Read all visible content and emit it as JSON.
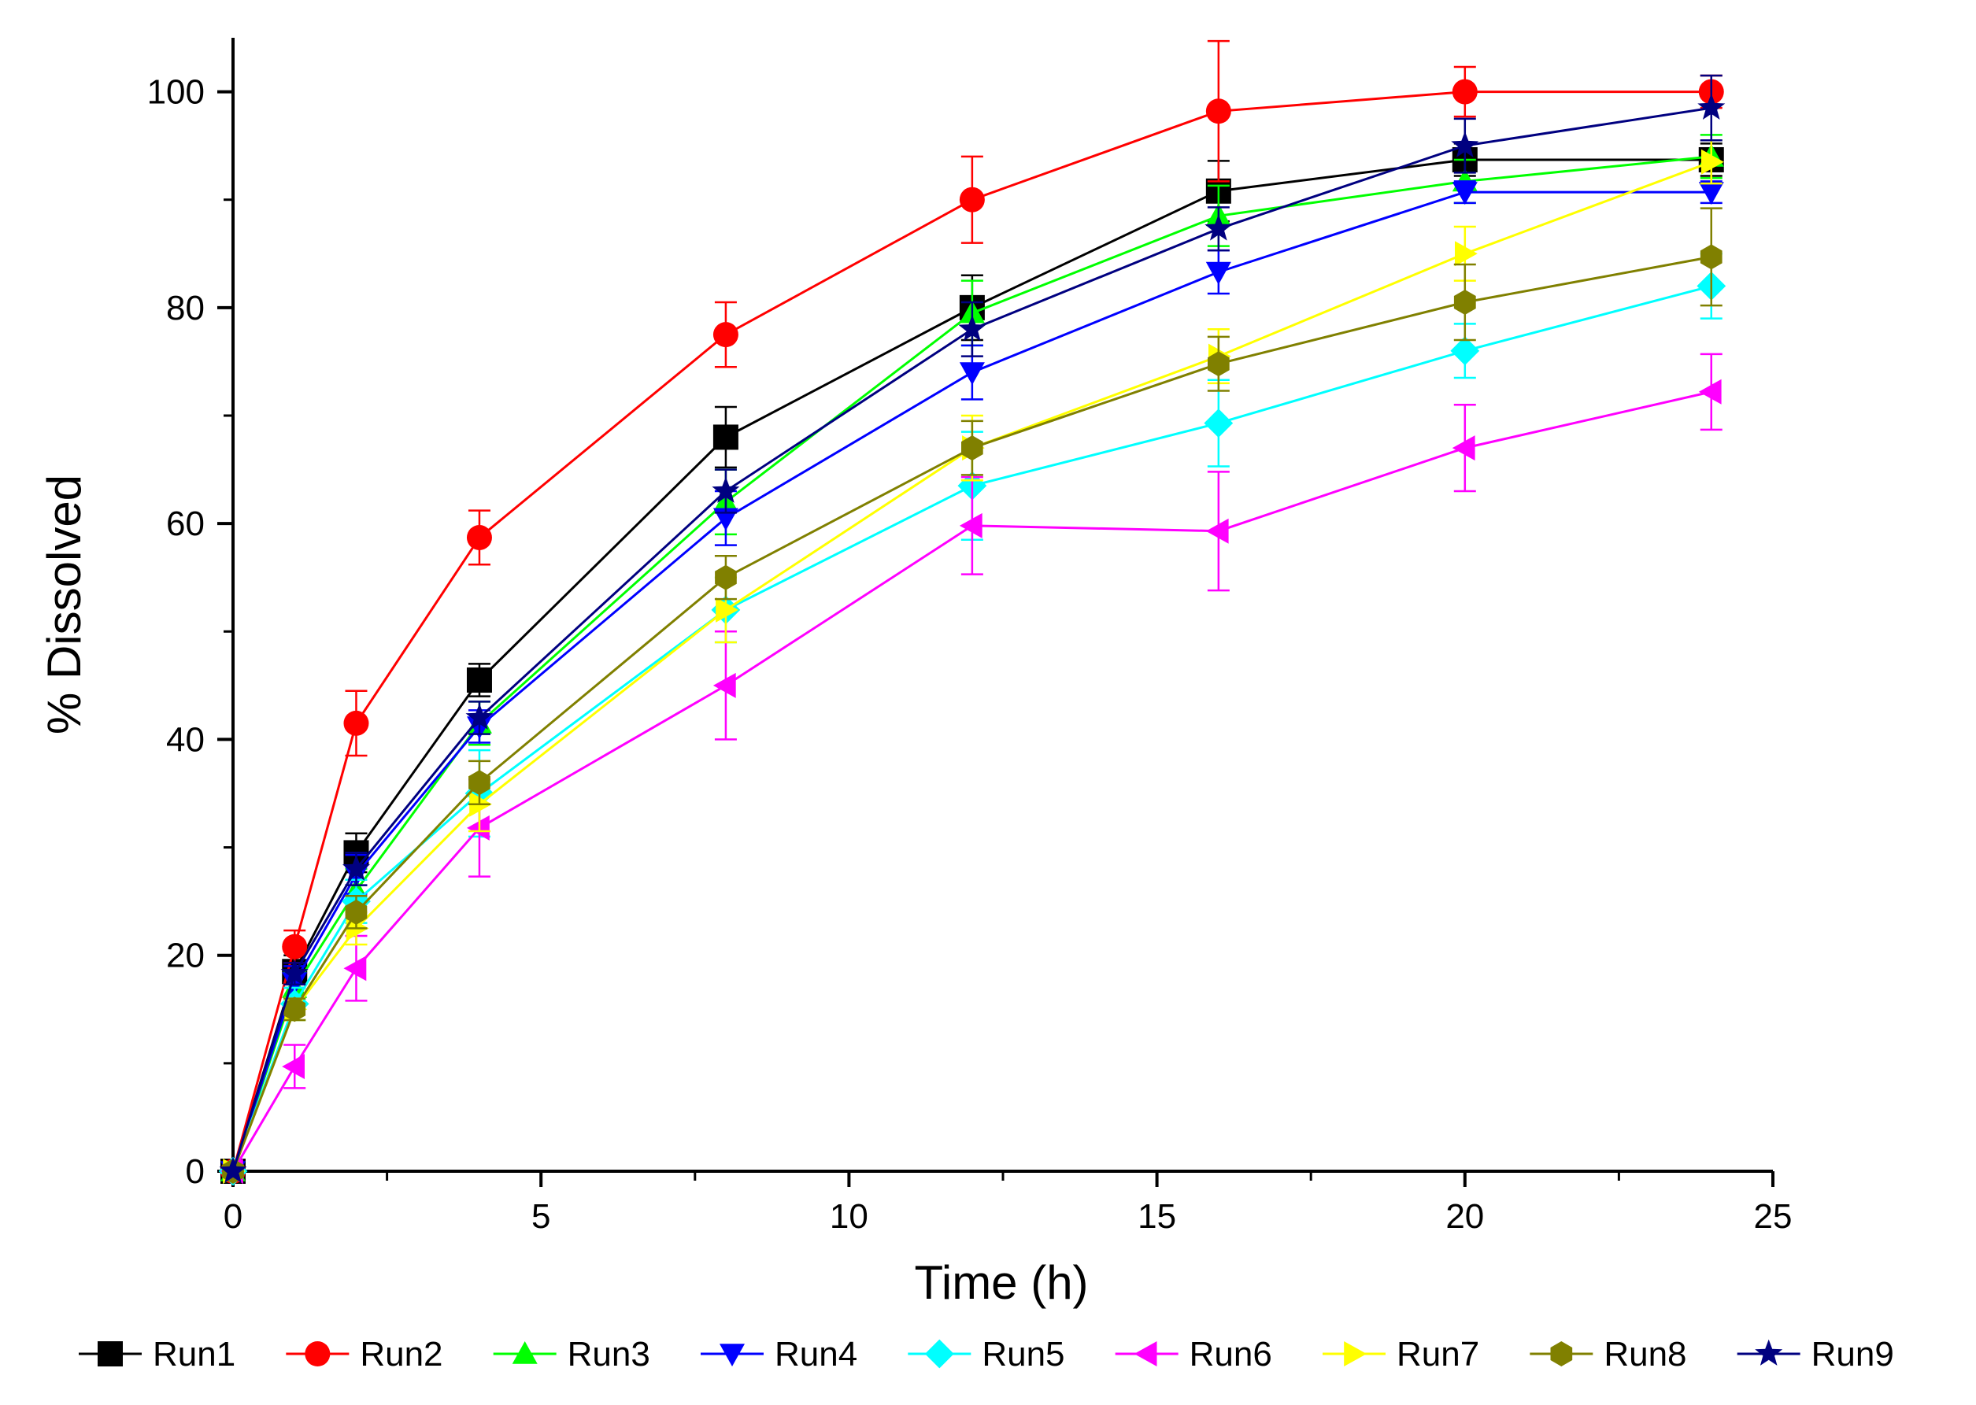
{
  "chart_data": {
    "type": "line",
    "title": "",
    "xlabel": "Time (h)",
    "ylabel": "% Dissolved",
    "xlim": [
      0,
      25
    ],
    "ylim": [
      0,
      105
    ],
    "x_ticks": [
      0,
      5,
      10,
      15,
      20,
      25
    ],
    "x_tick_labels": [
      "0",
      "5",
      "10",
      "15",
      "20",
      "25"
    ],
    "y_ticks": [
      0,
      20,
      40,
      60,
      80,
      100
    ],
    "y_tick_labels": [
      "0",
      "20",
      "40",
      "60",
      "80",
      "100"
    ],
    "x": [
      0,
      1,
      2,
      4,
      8,
      12,
      16,
      20,
      24
    ],
    "grid": false,
    "legend_position": "bottom",
    "series": [
      {
        "name": "Run1",
        "color": "#000000",
        "marker": "square",
        "values": [
          0,
          18.5,
          29.5,
          45.5,
          68,
          80,
          90.8,
          93.7,
          93.7
        ],
        "errors": [
          0,
          1.5,
          1.8,
          1.5,
          2.8,
          3.0,
          2.8,
          1.5,
          1.5
        ]
      },
      {
        "name": "Run2",
        "color": "#ff0000",
        "marker": "circle",
        "values": [
          0,
          20.8,
          41.5,
          58.7,
          77.5,
          90,
          98.2,
          100,
          100
        ],
        "errors": [
          0,
          1.5,
          3.0,
          2.5,
          3.0,
          4.0,
          6.5,
          2.3,
          1.5
        ]
      },
      {
        "name": "Run3",
        "color": "#00ff00",
        "marker": "triangle-up",
        "values": [
          0,
          17,
          26,
          41.5,
          62,
          79.5,
          88.5,
          91.7,
          94
        ],
        "errors": [
          0,
          1.5,
          2.0,
          2.0,
          3.0,
          3.0,
          2.8,
          2.0,
          2.0
        ]
      },
      {
        "name": "Run4",
        "color": "#0000ff",
        "marker": "triangle-down",
        "values": [
          0,
          17.5,
          27.5,
          41.2,
          60.5,
          74,
          83.3,
          90.7,
          90.7
        ],
        "errors": [
          0,
          1.5,
          1.8,
          1.5,
          2.5,
          2.5,
          2.0,
          1.0,
          1.0
        ]
      },
      {
        "name": "Run5",
        "color": "#00ffff",
        "marker": "diamond",
        "values": [
          0,
          15.5,
          25,
          35,
          52,
          63.5,
          69.3,
          76,
          82
        ],
        "errors": [
          0,
          1.5,
          2.0,
          4.0,
          3.0,
          5.0,
          4.0,
          2.5,
          3.0
        ]
      },
      {
        "name": "Run6",
        "color": "#ff00ff",
        "marker": "triangle-left",
        "values": [
          0,
          9.7,
          18.8,
          31.8,
          45,
          59.8,
          59.3,
          67,
          72.2
        ],
        "errors": [
          0,
          2.0,
          3.0,
          4.5,
          5.0,
          4.5,
          5.5,
          4.0,
          3.5
        ]
      },
      {
        "name": "Run7",
        "color": "#ffff00",
        "marker": "triangle-right",
        "values": [
          0,
          15,
          22.5,
          34,
          52,
          67,
          75.5,
          85,
          93.5
        ],
        "errors": [
          0,
          1.0,
          1.5,
          2.5,
          3.0,
          3.0,
          2.5,
          2.5,
          2.0
        ]
      },
      {
        "name": "Run8",
        "color": "#808000",
        "marker": "hexagon",
        "values": [
          0,
          15,
          24,
          36,
          55,
          67,
          74.8,
          80.5,
          84.7
        ],
        "errors": [
          0,
          1.0,
          1.5,
          2.0,
          2.0,
          2.5,
          2.5,
          3.5,
          4.5
        ]
      },
      {
        "name": "Run9",
        "color": "#000080",
        "marker": "star",
        "values": [
          0,
          18.3,
          28,
          42,
          63,
          78,
          87.3,
          95,
          98.5
        ],
        "errors": [
          0,
          1.0,
          1.5,
          1.5,
          2.0,
          2.5,
          2.0,
          2.5,
          3.0
        ]
      }
    ]
  }
}
